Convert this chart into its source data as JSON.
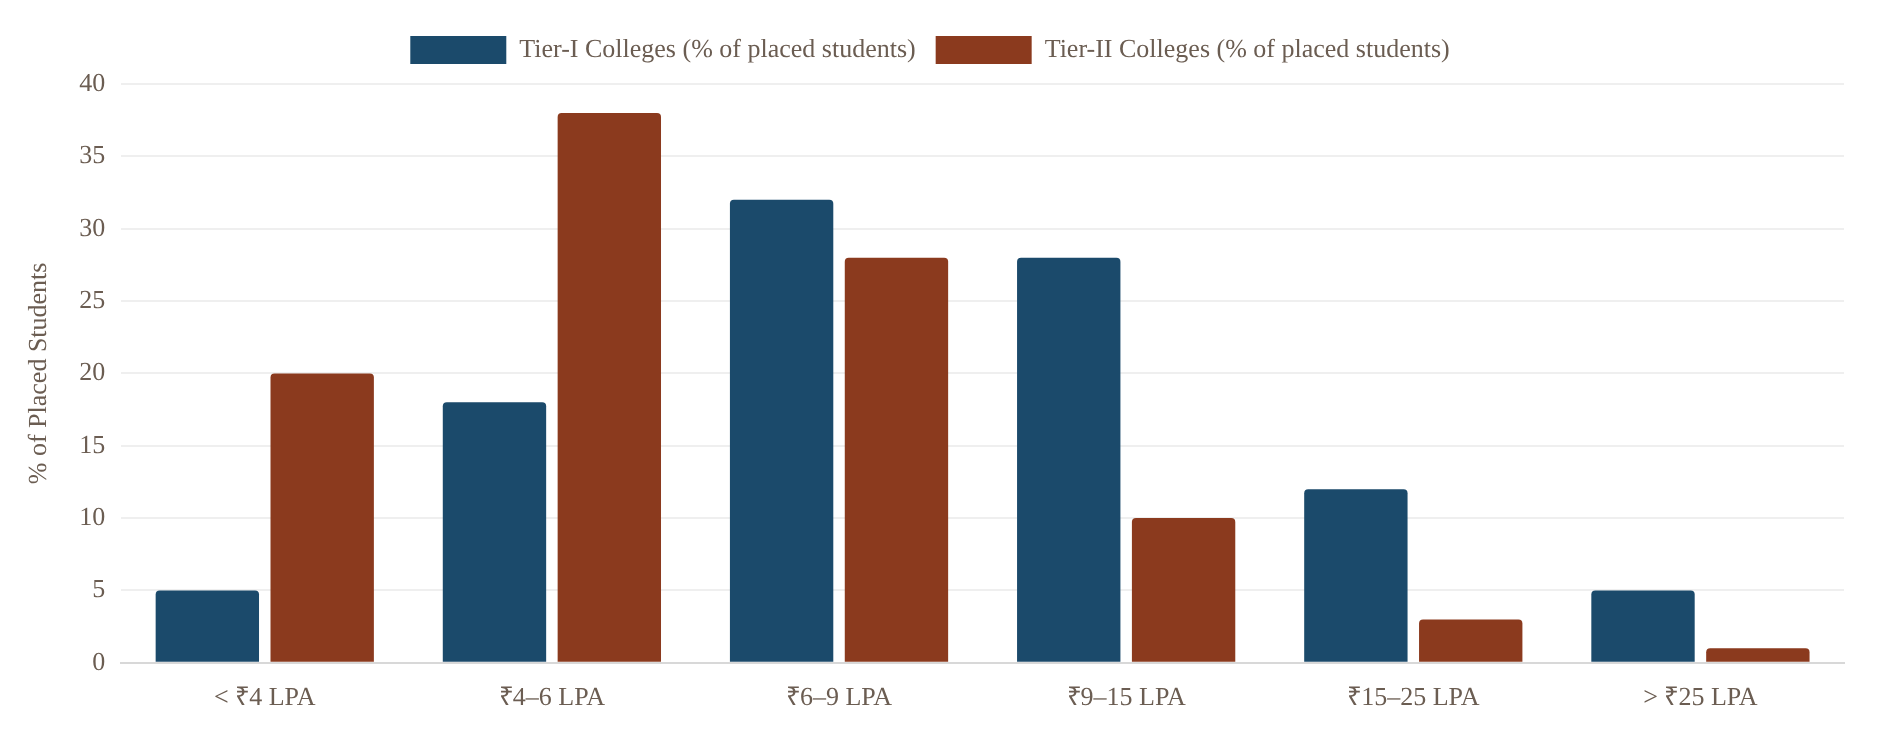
{
  "chart_data": {
    "type": "bar",
    "ylabel": "% of Placed Students",
    "categories": [
      "< ₹4 LPA",
      "₹4–6 LPA",
      "₹6–9 LPA",
      "₹9–15 LPA",
      "₹15–25 LPA",
      "> ₹25 LPA"
    ],
    "series": [
      {
        "name": "Tier-I Colleges (% of placed students)",
        "color": "#1b4a6b",
        "values": [
          5,
          18,
          32,
          28,
          12,
          5
        ]
      },
      {
        "name": "Tier-II Colleges (% of placed students)",
        "color": "#8b3a1e",
        "values": [
          20,
          38,
          28,
          10,
          3,
          1
        ]
      }
    ],
    "ylim": [
      0,
      40
    ],
    "yticks": [
      0,
      5,
      10,
      15,
      20,
      25,
      30,
      35,
      40
    ],
    "grid": "y",
    "legend": "top"
  }
}
